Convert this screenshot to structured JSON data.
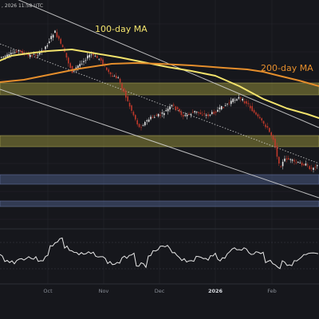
{
  "header": {
    "timestamp": ", 2026 11:58 UTC"
  },
  "colors": {
    "background": "#16171c",
    "bull": "#e8e8e8",
    "bear": "#c0392b",
    "ma100": "#f3e36c",
    "ma200": "#e58e2c",
    "resistance_zone": "#8f8a3a",
    "support_zone": "#4a5a82",
    "channel": "#d8d8d8",
    "oscillator": "#e8e8e8",
    "grid": "#24262d"
  },
  "chart_data": [
    {
      "type": "line",
      "title": "",
      "xlabel": "",
      "ylabel": "",
      "x_ticks": [
        "Oct",
        "Nov",
        "Dec",
        "2026",
        "Feb"
      ],
      "series": [
        {
          "name": "100-day MA",
          "color": "#f3e36c",
          "values": [
            [
              0,
              76
            ],
            [
              14,
              70
            ],
            [
              35,
              67
            ],
            [
              60,
              64
            ],
            [
              90,
              62
            ],
            [
              120,
              67
            ],
            [
              150,
              72
            ],
            [
              180,
              78
            ],
            [
              210,
              84
            ],
            [
              240,
              89
            ],
            [
              270,
              95
            ],
            [
              300,
              108
            ],
            [
              330,
              124
            ],
            [
              360,
              136
            ],
            [
              385,
              143
            ],
            [
              400,
              148
            ]
          ]
        },
        {
          "name": "200-day MA",
          "color": "#e58e2c",
          "values": [
            [
              0,
              103
            ],
            [
              30,
              100
            ],
            [
              60,
              94
            ],
            [
              100,
              86
            ],
            [
              140,
              80
            ],
            [
              170,
              79
            ],
            [
              200,
              80
            ],
            [
              240,
              82
            ],
            [
              280,
              85
            ],
            [
              310,
              87
            ],
            [
              330,
              90
            ],
            [
              350,
              95
            ],
            [
              375,
              101
            ],
            [
              400,
              108
            ]
          ]
        }
      ],
      "candles": "synthetic-approximation",
      "zones": [
        {
          "kind": "resistance",
          "y": [
            104,
            119
          ]
        },
        {
          "kind": "resistance",
          "y": [
            170,
            184
          ]
        },
        {
          "kind": "support",
          "y": [
            219,
            231
          ]
        },
        {
          "kind": "support",
          "y": [
            252,
            259
          ]
        }
      ],
      "trendlines": [
        {
          "from": [
            0,
            -10
          ],
          "to": [
            400,
            160
          ]
        },
        {
          "from": [
            0,
            112
          ],
          "to": [
            400,
            248
          ]
        },
        {
          "from": [
            0,
            55
          ],
          "to": [
            400,
            205
          ],
          "dashed": true
        }
      ],
      "grid": true,
      "legend": "labels on chart"
    }
  ],
  "annotations": {
    "ma100": "100-day MA",
    "ma200": "200-day MA"
  }
}
